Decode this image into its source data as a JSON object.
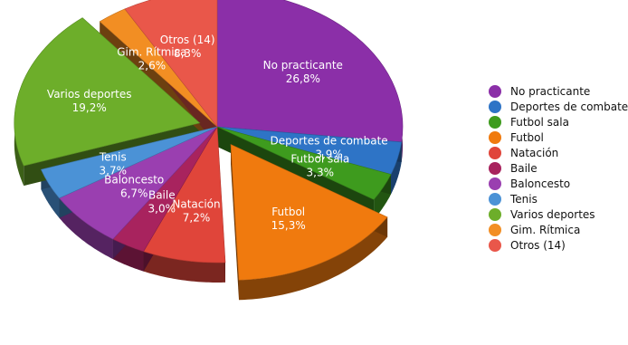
{
  "chart_data": {
    "type": "pie",
    "title": "",
    "legend_position": "right",
    "series": [
      {
        "name": "No practicante",
        "value": 26.8,
        "label": "26,8%",
        "color": "#8B2FA8"
      },
      {
        "name": "Deportes de combate",
        "value": 3.9,
        "label": "3,9%",
        "color": "#2E74C6"
      },
      {
        "name": "Futbol sala",
        "value": 3.3,
        "label": "3,3%",
        "color": "#3E9B1E"
      },
      {
        "name": "Futbol",
        "value": 15.3,
        "label": "15,3%",
        "color": "#F07A0E"
      },
      {
        "name": "Natación",
        "value": 7.2,
        "label": "7,2%",
        "color": "#E0453A"
      },
      {
        "name": "Baile",
        "value": 3.0,
        "label": "3,0%",
        "color": "#A8235E"
      },
      {
        "name": "Baloncesto",
        "value": 6.7,
        "label": "6,7%",
        "color": "#9A3FB0"
      },
      {
        "name": "Tenis",
        "value": 3.7,
        "label": "3,7%",
        "color": "#4B92D6"
      },
      {
        "name": "Varios deportes",
        "value": 19.2,
        "label": "19,2%",
        "color": "#6DAE2A"
      },
      {
        "name": "Gim. Rítmica",
        "value": 2.6,
        "label": "2,6%",
        "color": "#F28E23"
      },
      {
        "name": "Otros (14)",
        "value": 8.3,
        "label": "8,3%",
        "color": "#E9574A"
      }
    ]
  }
}
